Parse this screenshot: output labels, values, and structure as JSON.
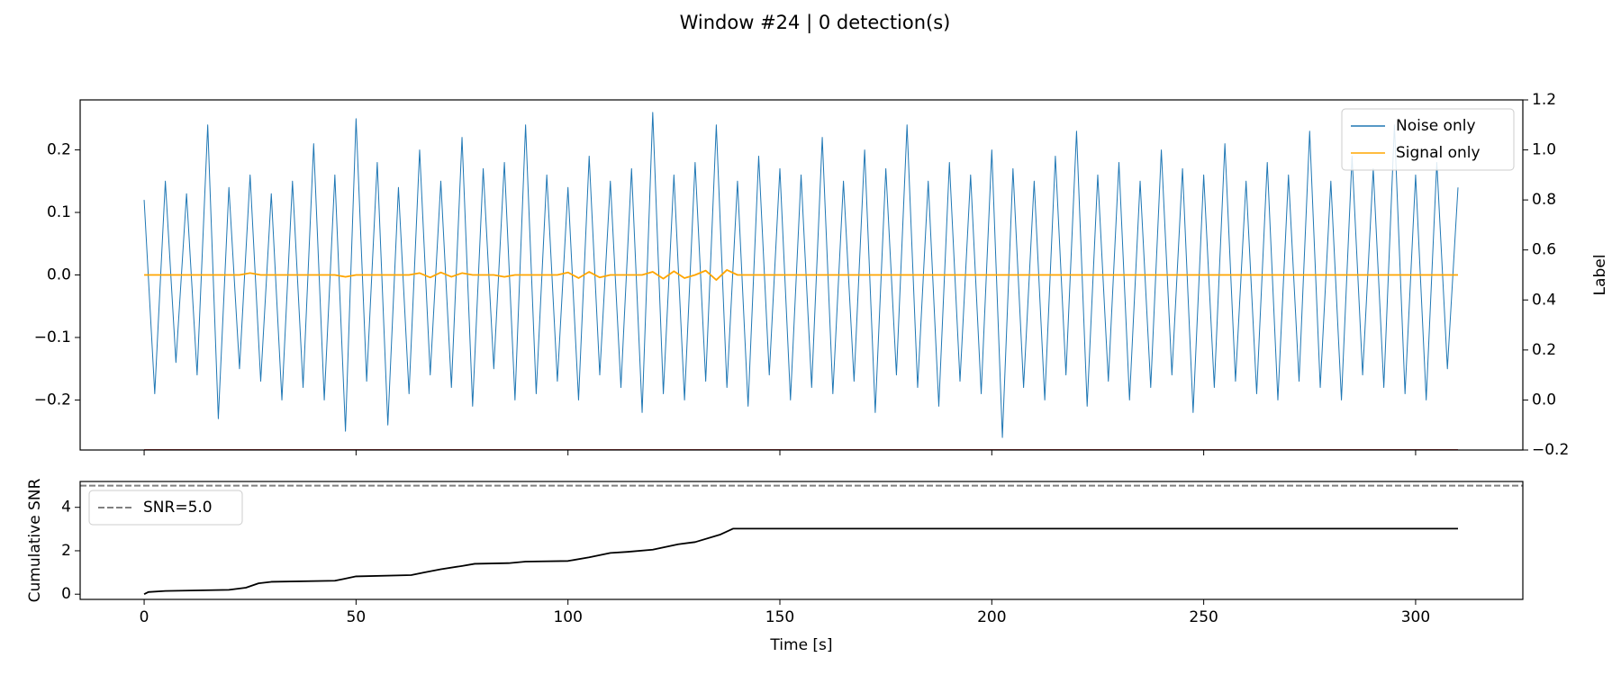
{
  "title": "Window #24 | 0 detection(s)",
  "chart_data": [
    {
      "type": "line",
      "x": [
        0,
        2.5,
        5,
        7.5,
        10,
        12.5,
        15,
        17.5,
        20,
        22.5,
        25,
        27.5,
        30,
        32.5,
        35,
        37.5,
        40,
        42.5,
        45,
        47.5,
        50,
        52.5,
        55,
        57.5,
        60,
        62.5,
        65,
        67.5,
        70,
        72.5,
        75,
        77.5,
        80,
        82.5,
        85,
        87.5,
        90,
        92.5,
        95,
        97.5,
        100,
        102.5,
        105,
        107.5,
        110,
        112.5,
        115,
        117.5,
        120,
        122.5,
        125,
        127.5,
        130,
        132.5,
        135,
        137.5,
        140,
        142.5,
        145,
        147.5,
        150,
        152.5,
        155,
        157.5,
        160,
        162.5,
        165,
        167.5,
        170,
        172.5,
        175,
        177.5,
        180,
        182.5,
        185,
        187.5,
        190,
        192.5,
        195,
        197.5,
        200,
        202.5,
        205,
        207.5,
        210,
        212.5,
        215,
        217.5,
        220,
        222.5,
        225,
        227.5,
        230,
        232.5,
        235,
        237.5,
        240,
        242.5,
        245,
        247.5,
        250,
        252.5,
        255,
        257.5,
        260,
        262.5,
        265,
        267.5,
        270,
        272.5,
        275,
        277.5,
        280,
        282.5,
        285,
        287.5,
        290,
        292.5,
        295,
        297.5,
        300,
        302.5,
        305,
        307.5,
        310
      ],
      "series": [
        {
          "name": "Noise only",
          "color": "#1f77b4",
          "values": [
            0.12,
            -0.19,
            0.15,
            -0.14,
            0.13,
            -0.16,
            0.24,
            -0.23,
            0.14,
            -0.15,
            0.16,
            -0.17,
            0.13,
            -0.2,
            0.15,
            -0.18,
            0.21,
            -0.2,
            0.16,
            -0.25,
            0.25,
            -0.17,
            0.18,
            -0.24,
            0.14,
            -0.19,
            0.2,
            -0.16,
            0.15,
            -0.18,
            0.22,
            -0.21,
            0.17,
            -0.15,
            0.18,
            -0.2,
            0.24,
            -0.19,
            0.16,
            -0.17,
            0.14,
            -0.2,
            0.19,
            -0.16,
            0.15,
            -0.18,
            0.17,
            -0.22,
            0.26,
            -0.19,
            0.16,
            -0.2,
            0.18,
            -0.17,
            0.24,
            -0.18,
            0.15,
            -0.21,
            0.19,
            -0.16,
            0.17,
            -0.2,
            0.16,
            -0.18,
            0.22,
            -0.19,
            0.15,
            -0.17,
            0.2,
            -0.22,
            0.17,
            -0.16,
            0.24,
            -0.18,
            0.15,
            -0.21,
            0.18,
            -0.17,
            0.16,
            -0.19,
            0.2,
            -0.26,
            0.17,
            -0.18,
            0.15,
            -0.2,
            0.19,
            -0.16,
            0.23,
            -0.21,
            0.16,
            -0.17,
            0.18,
            -0.2,
            0.15,
            -0.18,
            0.2,
            -0.16,
            0.17,
            -0.22,
            0.16,
            -0.18,
            0.21,
            -0.17,
            0.15,
            -0.19,
            0.18,
            -0.2,
            0.16,
            -0.17,
            0.23,
            -0.18,
            0.15,
            -0.2,
            0.19,
            -0.16,
            0.17,
            -0.18,
            0.24,
            -0.19,
            0.16,
            -0.2,
            0.18,
            -0.15,
            0.14
          ]
        },
        {
          "name": "Signal only",
          "color": "#ffa500",
          "values": [
            0,
            0,
            0,
            0,
            0,
            0,
            0,
            0,
            0,
            0,
            0.003,
            0,
            0,
            0,
            0,
            0,
            0,
            0,
            0,
            -0.003,
            0,
            0,
            0,
            0,
            0,
            0,
            0.003,
            -0.004,
            0.004,
            -0.003,
            0.003,
            0,
            0,
            0,
            -0.003,
            0,
            0,
            0,
            0,
            0,
            0.004,
            -0.005,
            0.005,
            -0.004,
            0,
            0,
            0,
            0,
            0.005,
            -0.006,
            0.006,
            -0.005,
            0,
            0.007,
            -0.008,
            0.008,
            0,
            0,
            0,
            0,
            0,
            0,
            0,
            0,
            0,
            0,
            0,
            0,
            0,
            0,
            0,
            0,
            0,
            0,
            0,
            0,
            0,
            0,
            0,
            0,
            0,
            0,
            0,
            0,
            0,
            0,
            0,
            0,
            0,
            0,
            0,
            0,
            0,
            0,
            0,
            0,
            0,
            0,
            0,
            0,
            0,
            0,
            0,
            0,
            0,
            0,
            0,
            0,
            0,
            0,
            0,
            0,
            0,
            0,
            0,
            0,
            0,
            0,
            0,
            0,
            0,
            0,
            0,
            0,
            0
          ]
        },
        {
          "color": "#8b0000",
          "axis": "y2",
          "x": [
            0,
            310
          ],
          "values": [
            -0.2,
            -0.2
          ]
        }
      ],
      "xlim": [
        -15.1,
        325.3
      ],
      "xticks": [
        0,
        50,
        100,
        150,
        200,
        250,
        300
      ],
      "ylim": [
        -0.28,
        0.28
      ],
      "yticks": [
        {
          "value": -0.2,
          "label": "−0.2"
        },
        {
          "value": -0.1,
          "label": "−0.1"
        },
        {
          "value": 0,
          "label": "0.0"
        },
        0.1,
        0.2
      ],
      "y2lim": [
        -0.2,
        1.2
      ],
      "y2ticks": [
        {
          "value": -0.2,
          "label": "−0.2"
        },
        {
          "value": 0,
          "label": "0.0"
        },
        0.2,
        0.4,
        0.6,
        0.8,
        {
          "value": 1,
          "label": "1.0"
        },
        1.2
      ],
      "y2label": "Label",
      "legend": "upper right"
    },
    {
      "type": "line",
      "x": [
        0,
        1,
        5,
        20,
        24,
        27,
        30,
        45,
        47,
        50,
        63,
        66,
        70,
        75,
        78,
        86,
        90,
        100,
        105,
        110,
        114,
        120,
        126,
        130,
        136,
        139,
        310
      ],
      "series": [
        {
          "color": "#000000",
          "values": [
            0,
            0.1,
            0.15,
            0.2,
            0.3,
            0.5,
            0.57,
            0.62,
            0.7,
            0.82,
            0.88,
            1.0,
            1.15,
            1.3,
            1.4,
            1.43,
            1.5,
            1.53,
            1.7,
            1.9,
            1.95,
            2.05,
            2.3,
            2.4,
            2.75,
            3.02,
            3.02
          ]
        }
      ],
      "hlines": [
        {
          "y": 5.0,
          "name": "SNR=5.0",
          "color": "#808080",
          "dash": true
        }
      ],
      "xlim": [
        -15.1,
        325.3
      ],
      "xticks": [
        0,
        50,
        100,
        150,
        200,
        250,
        300
      ],
      "ylim": [
        -0.24,
        5.19
      ],
      "yticks": [
        0,
        2,
        4
      ],
      "xlabel": "Time [s]",
      "ylabel": "Cumulative SNR",
      "legend": "upper left"
    }
  ]
}
